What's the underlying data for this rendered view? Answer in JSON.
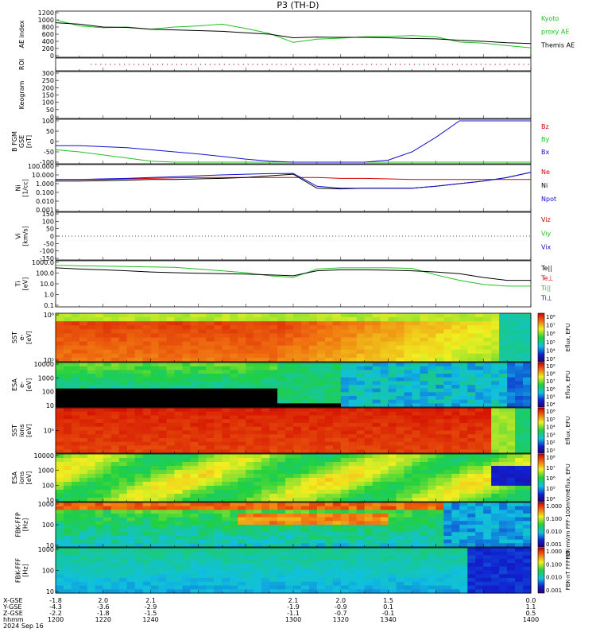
{
  "title": "P3 (TH-D)",
  "colors": {
    "red": "#d40000",
    "green": "#22c022",
    "blue": "#1010d0",
    "black": "#000000"
  },
  "panels": [
    {
      "id": "ae",
      "ylabel": [
        "AE index"
      ],
      "yticks": [
        "1200",
        "1000",
        "800",
        "600",
        "400",
        "200",
        "0"
      ],
      "legend": [
        {
          "text": "Kyoto",
          "color": "#22c022"
        },
        {
          "text": "proxy AE",
          "color": "#22c022"
        },
        {
          "text": "Themis AE",
          "color": "#000000"
        }
      ]
    },
    {
      "id": "roi",
      "ylabel": [
        "ROI"
      ],
      "yticks": [],
      "legend": []
    },
    {
      "id": "keogram",
      "ylabel": [
        "Keogram"
      ],
      "yticks": [
        "300",
        "250",
        "200",
        "150",
        "100",
        "50",
        "0"
      ],
      "legend": []
    },
    {
      "id": "bfgm",
      "ylabel": [
        "B FGM",
        "GSE",
        "[nT]"
      ],
      "yticks": [
        "100",
        "50",
        "0",
        "-50",
        "-100"
      ],
      "legend": [
        {
          "text": "Bz",
          "color": "#d40000"
        },
        {
          "text": "By",
          "color": "#22c022"
        },
        {
          "text": "Bx",
          "color": "#1010d0"
        }
      ]
    },
    {
      "id": "ni",
      "ylabel": [
        "Ni",
        "[1/cc]"
      ],
      "yticks": [
        "100.000",
        "10.000",
        "1.000",
        "0.100",
        "0.010",
        "0.001"
      ],
      "legend": [
        {
          "text": "Ne",
          "color": "#d40000"
        },
        {
          "text": "Ni",
          "color": "#000000"
        },
        {
          "text": "Npot",
          "color": "#1010d0"
        }
      ]
    },
    {
      "id": "vi",
      "ylabel": [
        "Vi",
        "[km/s]"
      ],
      "yticks": [
        "150",
        "100",
        "50",
        "0",
        "-50",
        "-100",
        "-150"
      ],
      "legend": [
        {
          "text": "Viz",
          "color": "#d40000"
        },
        {
          "text": "Viy",
          "color": "#22c022"
        },
        {
          "text": "Vix",
          "color": "#1010d0"
        }
      ]
    },
    {
      "id": "ti",
      "ylabel": [
        "Ti",
        "[eV]"
      ],
      "yticks": [
        "1000.0",
        "100.0",
        "10.0",
        "1.0",
        "0.1"
      ],
      "legend": [
        {
          "text": "Te||",
          "color": "#000000"
        },
        {
          "text": "Te⊥",
          "color": "#d40000"
        },
        {
          "text": "Ti||",
          "color": "#22c022"
        },
        {
          "text": "Ti⊥",
          "color": "#1010d0"
        }
      ]
    },
    {
      "id": "sst_e",
      "ylabel": [
        "SST",
        "e-",
        "[eV]"
      ],
      "yticks": [
        "10⁶",
        "10⁵"
      ],
      "cbar": {
        "label": "Eflux, EFU",
        "ticks": [
          "10⁸",
          "10⁷",
          "10⁶",
          "10⁵",
          "10⁴",
          "10³"
        ]
      }
    },
    {
      "id": "esa_e",
      "ylabel": [
        "ESA",
        "e-",
        "[eV]"
      ],
      "yticks": [
        "10000",
        "1000",
        "100",
        "10"
      ],
      "cbar": {
        "label": "Eflux, EFU",
        "ticks": [
          "10⁹",
          "10⁸",
          "10⁷",
          "10⁶",
          "10⁵",
          "10⁴"
        ]
      }
    },
    {
      "id": "sst_i",
      "ylabel": [
        "SST",
        "ions",
        "[eV]"
      ],
      "yticks": [
        "10⁵"
      ],
      "cbar": {
        "label": "Eflux, EFU",
        "ticks": [
          "10⁶",
          "10⁵",
          "10⁴",
          "10³",
          "10²",
          "10¹"
        ]
      }
    },
    {
      "id": "esa_i",
      "ylabel": [
        "ESA",
        "ions",
        "[eV]"
      ],
      "yticks": [
        "10000",
        "1000",
        "100",
        "10"
      ],
      "cbar": {
        "label": "Eflux, EFU",
        "ticks": [
          "10⁸",
          "10⁷",
          "10⁶",
          "10⁵",
          "10⁴"
        ]
      }
    },
    {
      "id": "fbk_ffp",
      "ylabel": [
        "FBK-FFP",
        "[Hz]"
      ],
      "yticks": [
        "1000",
        "100",
        "10"
      ],
      "cbar": {
        "label": "FBK-mV/m FFF-100mV/m",
        "ticks": [
          "1.000",
          "0.100",
          "0.010",
          "0.001"
        ]
      }
    },
    {
      "id": "fbk_fff",
      "ylabel": [
        "FBK-FFF",
        "[Hz]"
      ],
      "yticks": [
        "1000",
        "100",
        "10"
      ],
      "cbar": {
        "label": "FBK-nT FFF-nT",
        "ticks": [
          "1.000",
          "0.100",
          "0.010",
          "0.001"
        ]
      }
    }
  ],
  "xaxis": {
    "row_labels": [
      "X-GSE",
      "Y-GSE",
      "Z-GSE",
      "hhmm",
      "2024 Sep 16"
    ],
    "columns": [
      {
        "x": "-1.8",
        "y": "-4.3",
        "z": "-2.2",
        "t": "1200"
      },
      {
        "x": "2.0",
        "y": "-3.6",
        "z": "-1.8",
        "t": "1220"
      },
      {
        "x": "2.1",
        "y": "-2.9",
        "z": "-1.5",
        "t": "1240"
      },
      {
        "x": "2.1",
        "y": "-1.9",
        "z": "-1.1",
        "t": "1300"
      },
      {
        "x": "2.0",
        "y": "-0.9",
        "z": "-0.7",
        "t": "1320"
      },
      {
        "x": "1.5",
        "y": "0.1",
        "z": "-0.1",
        "t": "1340"
      },
      {
        "x": "0.0",
        "y": "1.1",
        "z": "0.5",
        "t": "1400"
      }
    ]
  },
  "chart_data": [
    {
      "type": "line",
      "panel": "ae",
      "xlabel": "",
      "ylabel": "AE index",
      "ylim": [
        0,
        1200
      ],
      "x": [
        1200,
        1210,
        1220,
        1230,
        1240,
        1250,
        1260,
        1270,
        1280,
        1290,
        1300,
        1310,
        1320,
        1330,
        1340,
        1350,
        1360,
        1370,
        1380,
        1390,
        1400
      ],
      "series": [
        {
          "name": "Kyoto proxy AE",
          "color": "#22c022",
          "values": [
            1000,
            830,
            780,
            800,
            740,
            800,
            830,
            880,
            760,
            620,
            370,
            460,
            490,
            530,
            540,
            560,
            530,
            380,
            350,
            280,
            220
          ]
        },
        {
          "name": "Themis AE",
          "color": "#000000",
          "values": [
            920,
            880,
            800,
            790,
            740,
            720,
            700,
            680,
            640,
            600,
            500,
            520,
            510,
            510,
            500,
            480,
            470,
            430,
            400,
            360,
            340
          ]
        }
      ]
    },
    {
      "type": "line",
      "panel": "bfgm",
      "ylabel": "B FGM GSE [nT]",
      "ylim": [
        -100,
        100
      ],
      "x": [
        1200,
        1210,
        1220,
        1230,
        1240,
        1250,
        1260,
        1270,
        1280,
        1290,
        1300,
        1310,
        1320,
        1330,
        1340,
        1350,
        1360,
        1370,
        1380,
        1390,
        1400
      ],
      "series": [
        {
          "name": "By",
          "color": "#22c022",
          "values": [
            -40,
            -50,
            -65,
            -80,
            -95,
            -100,
            -100,
            -100,
            -100,
            -100,
            -100,
            -100,
            -100,
            -100,
            -100,
            -100,
            -100,
            -100,
            -100,
            -100,
            -100
          ]
        },
        {
          "name": "Bx",
          "color": "#1010d0",
          "values": [
            -20,
            -20,
            -25,
            -30,
            -40,
            -50,
            -60,
            -72,
            -85,
            -95,
            -100,
            -100,
            -100,
            -100,
            -90,
            -50,
            20,
            100,
            100,
            100,
            100
          ]
        }
      ]
    },
    {
      "type": "line",
      "panel": "ni",
      "ylabel": "Ni [1/cc]",
      "yscale": "log",
      "ylim": [
        0.001,
        100
      ],
      "x": [
        1200,
        1210,
        1220,
        1230,
        1240,
        1250,
        1260,
        1270,
        1280,
        1290,
        1300,
        1310,
        1320,
        1330,
        1340,
        1350,
        1360,
        1370,
        1380,
        1390,
        1400
      ],
      "series": [
        {
          "name": "Ne",
          "color": "#d40000",
          "values": [
            3,
            3,
            3,
            3.5,
            4,
            4.5,
            5,
            5,
            5,
            5,
            5,
            5,
            4,
            4,
            3.5,
            3,
            3,
            3,
            3,
            3,
            3
          ]
        },
        {
          "name": "Ni",
          "color": "#000000",
          "values": [
            2,
            2,
            2.2,
            2.5,
            3,
            3,
            3.5,
            4,
            5,
            8,
            12,
            0.3,
            0.25,
            0.3,
            0.3,
            0.3,
            0.5,
            1,
            2,
            5,
            20
          ]
        },
        {
          "name": "Npot",
          "color": "#1010d0",
          "values": [
            3,
            3,
            3.5,
            4,
            5,
            6,
            8,
            10,
            12,
            14,
            15,
            0.5,
            0.3,
            0.3,
            0.3,
            0.3,
            0.5,
            1,
            2,
            5,
            20
          ]
        }
      ]
    },
    {
      "type": "line",
      "panel": "ti",
      "ylabel": "Ti [eV]",
      "yscale": "log",
      "ylim": [
        0.1,
        3000
      ],
      "x": [
        1200,
        1210,
        1220,
        1230,
        1240,
        1250,
        1260,
        1270,
        1280,
        1290,
        1300,
        1310,
        1320,
        1330,
        1340,
        1350,
        1360,
        1370,
        1380,
        1390,
        1400
      ],
      "series": [
        {
          "name": "Ti||",
          "color": "#22c022",
          "values": [
            1500,
            1300,
            1200,
            1100,
            1000,
            900,
            600,
            400,
            250,
            120,
            80,
            600,
            800,
            800,
            800,
            700,
            150,
            40,
            15,
            10,
            10
          ]
        },
        {
          "name": "Te||",
          "color": "#000000",
          "values": [
            800,
            600,
            500,
            400,
            300,
            250,
            220,
            200,
            180,
            150,
            120,
            400,
            500,
            500,
            450,
            400,
            300,
            200,
            80,
            40,
            40
          ]
        }
      ]
    }
  ]
}
